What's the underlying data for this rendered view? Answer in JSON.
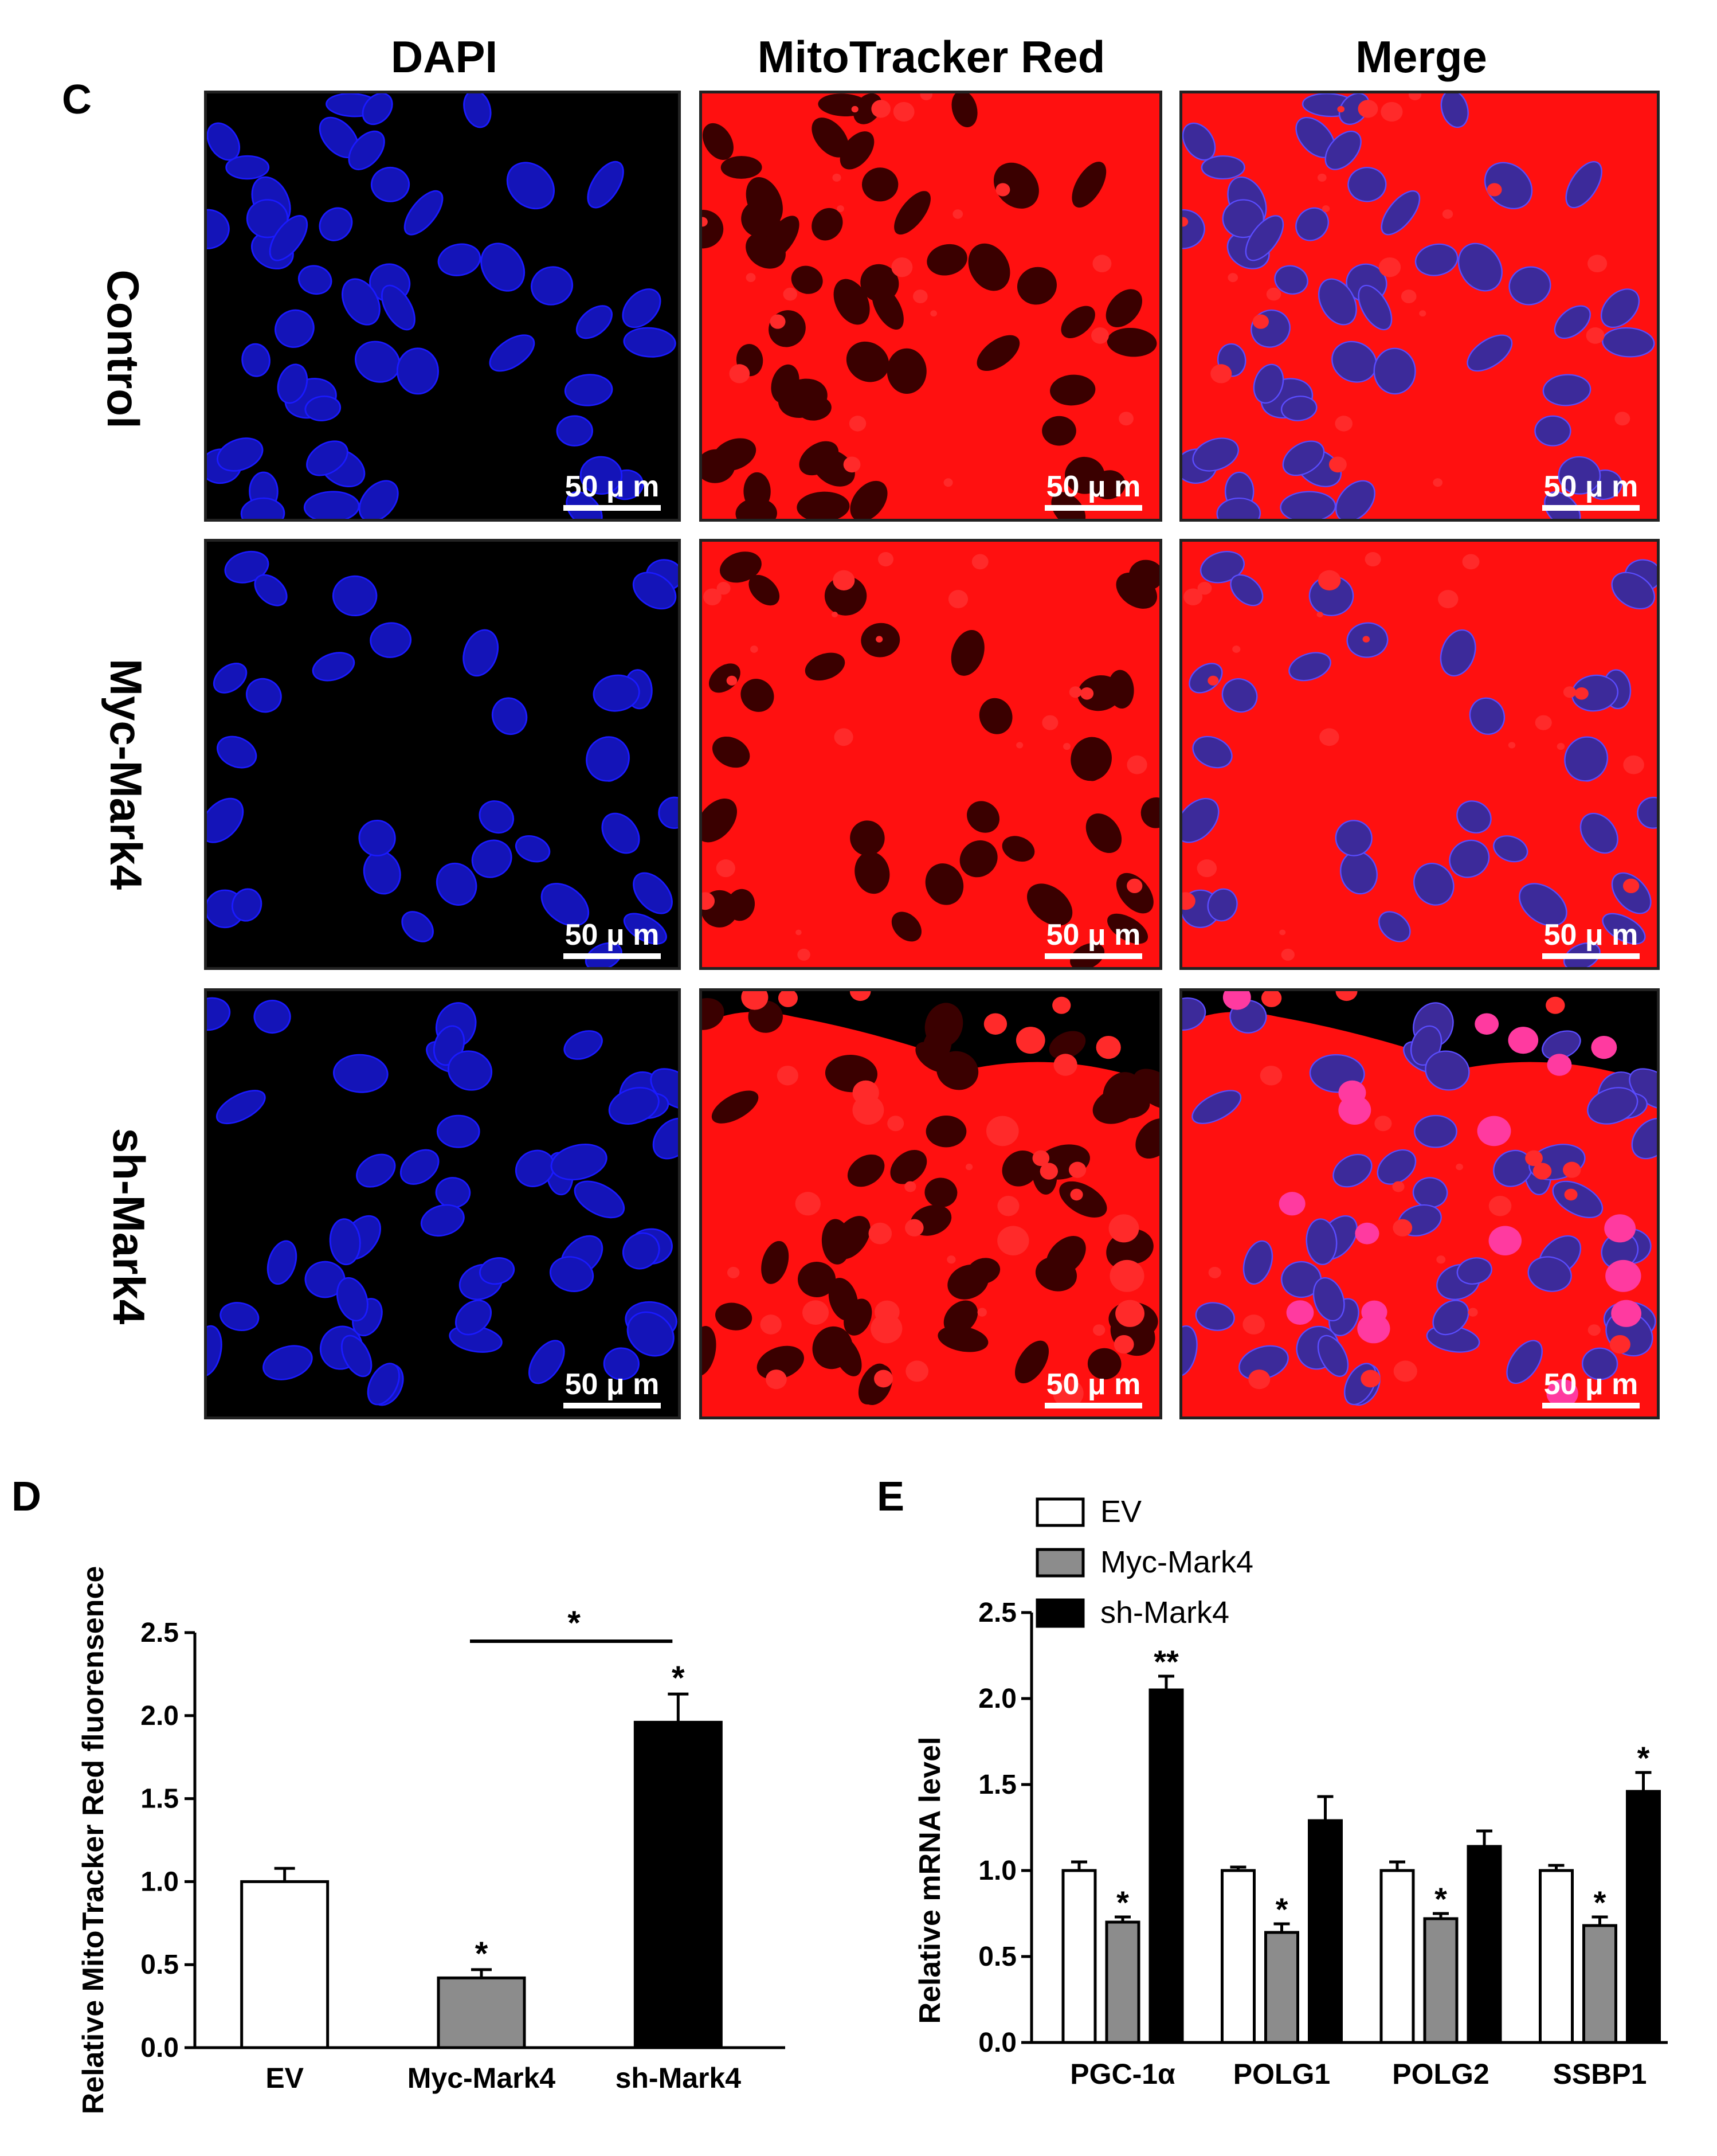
{
  "panel_c": {
    "letter": "C",
    "column_headers": [
      "DAPI",
      "MitoTracker Red",
      "Merge"
    ],
    "row_labels": [
      "Control",
      "Myc-Mark4",
      "sh-Mark4"
    ],
    "scale_bar_label": "50 μ m",
    "colors": {
      "dapi": "#1a1aff",
      "mitotracker": "#ff1010",
      "background": "#000000"
    }
  },
  "panel_d": {
    "letter": "D"
  },
  "panel_e": {
    "letter": "E"
  },
  "chart_data": [
    {
      "id": "D",
      "type": "bar",
      "title": "",
      "xlabel": "",
      "ylabel": "Relative MitoTracker Red fluorensence",
      "ylim": [
        0,
        2.5
      ],
      "yticks": [
        "0.0",
        "0.5",
        "1.0",
        "1.5",
        "2.0",
        "2.5"
      ],
      "categories": [
        "EV",
        "Myc-Mark4",
        "sh-Mark4"
      ],
      "values": [
        1.0,
        0.42,
        1.96
      ],
      "errors": [
        0.08,
        0.05,
        0.17
      ],
      "bar_colors": [
        "#ffffff",
        "#8c8c8c",
        "#000000"
      ],
      "significance": [
        "",
        "*",
        "*"
      ],
      "bracket": {
        "from": "Myc-Mark4",
        "to": "sh-Mark4",
        "label": "*"
      }
    },
    {
      "id": "E",
      "type": "bar",
      "title": "",
      "xlabel": "",
      "ylabel": "Relative mRNA level",
      "ylim": [
        0,
        2.5
      ],
      "yticks": [
        "0.0",
        "0.5",
        "1.0",
        "1.5",
        "2.0",
        "2.5"
      ],
      "categories": [
        "PGC-1α",
        "POLG1",
        "POLG2",
        "SSBP1"
      ],
      "series": [
        {
          "name": "EV",
          "color": "#ffffff",
          "values": [
            1.0,
            1.0,
            1.0,
            1.0
          ],
          "errors": [
            0.05,
            0.02,
            0.05,
            0.03
          ],
          "significance": [
            "",
            "",
            "",
            ""
          ]
        },
        {
          "name": "Myc-Mark4",
          "color": "#8c8c8c",
          "values": [
            0.7,
            0.64,
            0.72,
            0.68
          ],
          "errors": [
            0.03,
            0.05,
            0.03,
            0.05
          ],
          "significance": [
            "*",
            "*",
            "*",
            "*"
          ]
        },
        {
          "name": "sh-Mark4",
          "color": "#000000",
          "values": [
            2.05,
            1.29,
            1.14,
            1.46
          ],
          "errors": [
            0.08,
            0.14,
            0.09,
            0.11
          ],
          "significance": [
            "**",
            "",
            "",
            "*"
          ]
        }
      ],
      "legend_position": "top-left"
    }
  ]
}
